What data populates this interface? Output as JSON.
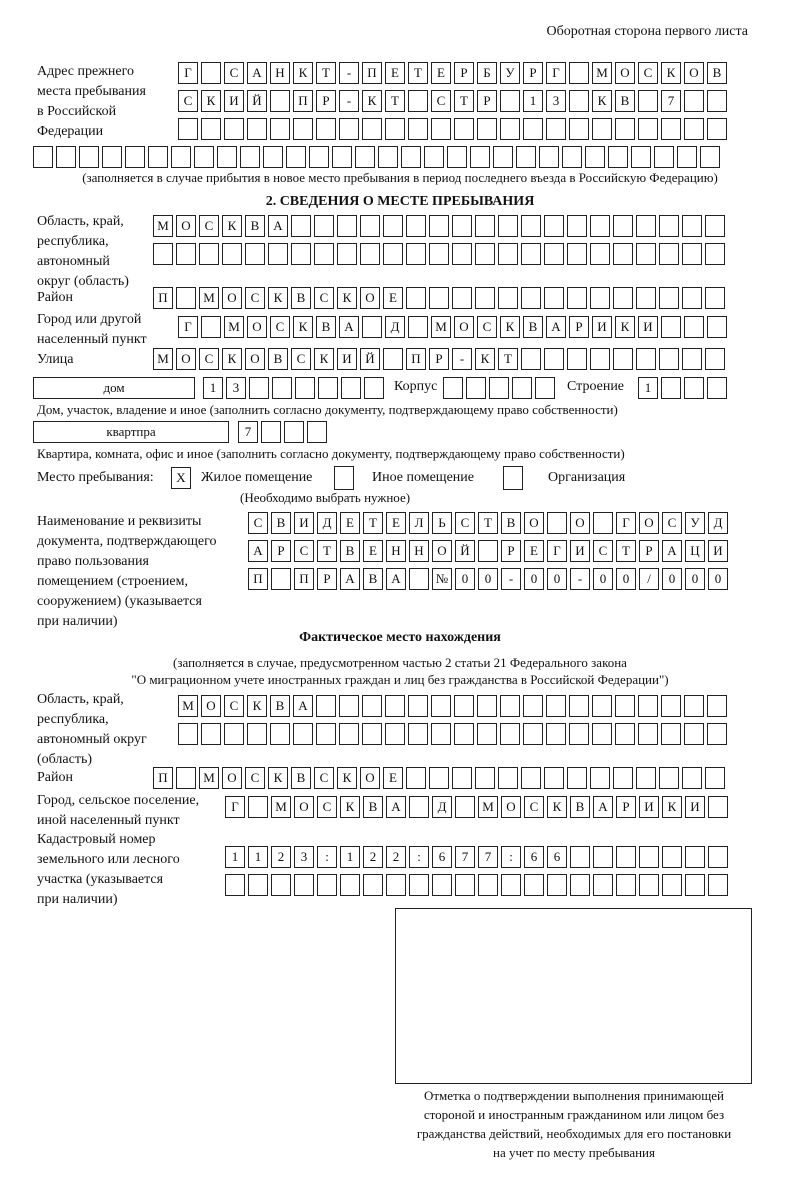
{
  "header": {
    "title": "Оборотная сторона первого листа"
  },
  "prev_address": {
    "label": "Адрес прежнего\nместа пребывания\nв Российской\nФедерации",
    "rows": [
      "Г САНКТ-ПЕТЕРБУРГ МОСКОВ",
      "СКИЙ ПР-КТ СТР 13 КВ 7  ",
      "                        ",
      "                              "
    ],
    "note": "(заполняется в случае прибытия в новое место пребывания в период последнего въезда в Российскую Федерацию)"
  },
  "section2": {
    "heading": "2. СВЕДЕНИЯ О МЕСТЕ ПРЕБЫВАНИЯ",
    "region": {
      "label": "Область, край,\nреспублика,\nавтономный\nокруг (область)",
      "rows": [
        "МОСКВА                   ",
        "                         "
      ]
    },
    "district": {
      "label": "Район",
      "rows": [
        "П МОСКВСКОЕ              "
      ]
    },
    "city": {
      "label": "Город или другой\nнаселенный пункт",
      "rows": [
        "Г МОСКВА Д МОСКВАРИКИ   "
      ]
    },
    "street": {
      "label": "Улица",
      "rows": [
        "МОСКОВСКИЙ ПР-КТ         "
      ]
    },
    "house": {
      "type": "дом",
      "number": "13      ",
      "korpus_label": "Корпус",
      "korpus": "     ",
      "stroenie_label": "Строение",
      "stroenie": "1   ",
      "caption": "Дом, участок, владение и иное (заполнить согласно документу, подтверждающему право собственности)"
    },
    "flat": {
      "type": "квартпра",
      "number": "7   ",
      "caption": "Квартира, комната, офис и иное (заполнить согласно документу, подтверждающему право собственности)"
    },
    "stay": {
      "label": "Место пребывания:",
      "options": [
        {
          "label": "Жилое помещение",
          "mark": "X"
        },
        {
          "label": "Иное помещение",
          "mark": ""
        },
        {
          "label": "Организация",
          "mark": ""
        }
      ],
      "note": "(Необходимо выбрать нужное)"
    },
    "document": {
      "label": "Наименование и реквизиты\nдокумента, подтверждающего\nправо пользования\nпомещением (строением,\nсооружением) (указывается\nпри наличии)",
      "rows": [
        "СВИДЕТЕЛЬСТВО О ГОСУД",
        "АРСТВЕННОЙ РЕГИСТРАЦИ",
        "П ПРАВА №00-00-00/000"
      ]
    }
  },
  "actual": {
    "heading": "Фактическое место нахождения",
    "note1": "(заполняется в случае, предусмотренном частью 2 статьи 21 Федерального закона",
    "note2": "\"О миграционном учете иностранных граждан и лиц без гражданства в Российской Федерации\")",
    "region": {
      "label": "Область, край,\nреспублика,\nавтономный округ\n(область)",
      "rows": [
        "МОСКВА                  ",
        "                        "
      ]
    },
    "district": {
      "label": "Район",
      "rows": [
        "П МОСКВСКОЕ              "
      ]
    },
    "city": {
      "label": "Город, сельское поселение,\nиной населенный пункт",
      "rows": [
        "Г МОСКВА Д МОСКВАРИКИ "
      ]
    },
    "cadastre": {
      "label": "Кадастровый номер\nземельного или лесного\nучастка (указывается\nпри наличии)",
      "rows": [
        "1123:122:677:66       ",
        "                      "
      ]
    }
  },
  "stamp": {
    "caption": "Отметка о подтверждении выполнения принимающей\nстороной и иностранным гражданином или лицом без\nгражданства действий, необходимых для его постановки\nна учет по месту пребывания"
  }
}
